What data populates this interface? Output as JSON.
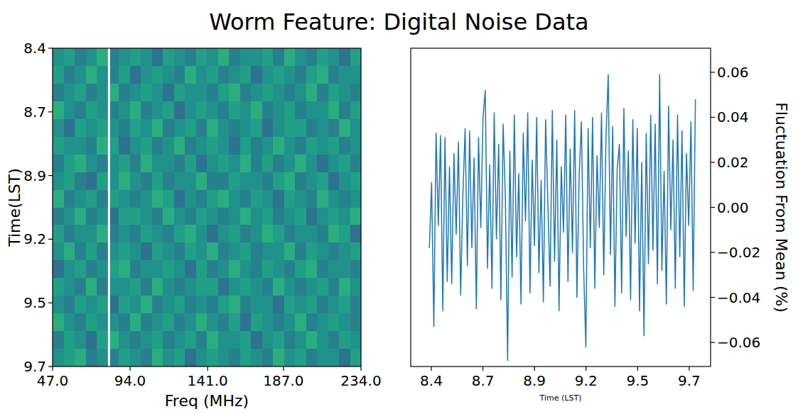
{
  "title": "Worm Feature: Digital Noise Data",
  "chart_data": [
    {
      "type": "heatmap",
      "x_label": "Freq (MHz)",
      "y_label": "Time(LST)",
      "xlim": [
        47,
        234
      ],
      "ylim": [
        8.4,
        9.715
      ],
      "xticks": [
        {
          "value": 47,
          "label": "47.0"
        },
        {
          "value": 94,
          "label": "94.0"
        },
        {
          "value": 141,
          "label": "141.0"
        },
        {
          "value": 187,
          "label": "187.0"
        },
        {
          "value": 234,
          "label": "234.0"
        }
      ],
      "yticks": [
        8.4,
        {
          "value": 8.663,
          "label": "8.7"
        },
        {
          "value": 8.926,
          "label": "8.9"
        },
        {
          "value": 9.189,
          "label": "9.2"
        },
        {
          "value": 9.452,
          "label": "9.5"
        },
        {
          "value": 9.715,
          "label": "9.7"
        }
      ],
      "color_range": [
        -8,
        8
      ],
      "flagged_freq": [
        81.2
      ],
      "cells": [
        [
          0,
          1,
          -1,
          0,
          2,
          -1,
          0,
          1,
          0,
          -2,
          1,
          0,
          -1,
          1,
          0,
          2,
          -1,
          0,
          0,
          1,
          -1,
          2,
          0,
          -1,
          1,
          0,
          -2,
          1
        ],
        [
          1,
          -1,
          0,
          2,
          0,
          -1,
          1,
          -2,
          0,
          1,
          0,
          -1,
          2,
          0,
          1,
          -1,
          0,
          1,
          -2,
          0,
          1,
          0,
          -1,
          1,
          2,
          -1,
          0,
          0
        ],
        [
          -1,
          0,
          1,
          -1,
          0,
          2,
          -1,
          0,
          1,
          0,
          -2,
          1,
          0,
          0,
          -1,
          1,
          2,
          -1,
          0,
          1,
          0,
          -1,
          0,
          2,
          -1,
          1,
          0,
          -1
        ],
        [
          2,
          0,
          -1,
          1,
          0,
          -1,
          0,
          2,
          -1,
          0,
          1,
          -2,
          0,
          1,
          0,
          -1,
          1,
          0,
          2,
          -1,
          0,
          1,
          -1,
          0,
          0,
          2,
          -1,
          1
        ],
        [
          0,
          -2,
          1,
          0,
          1,
          0,
          -1,
          1,
          0,
          2,
          -1,
          0,
          1,
          -1,
          2,
          0,
          -1,
          0,
          1,
          -2,
          0,
          1,
          1,
          -1,
          0,
          -1,
          2,
          0
        ],
        [
          1,
          0,
          0,
          -1,
          2,
          1,
          -2,
          0,
          1,
          -1,
          0,
          2,
          -1,
          0,
          1,
          0,
          -2,
          1,
          -1,
          0,
          2,
          0,
          -1,
          1,
          0,
          1,
          -1,
          0
        ],
        [
          -1,
          1,
          2,
          0,
          -1,
          0,
          1,
          -1,
          2,
          0,
          0,
          -1,
          1,
          -2,
          0,
          1,
          0,
          2,
          -1,
          1,
          -1,
          0,
          2,
          0,
          -2,
          0,
          1,
          -1
        ],
        [
          0,
          1,
          -1,
          -2,
          1,
          0,
          2,
          0,
          -1,
          1,
          -1,
          0,
          0,
          2,
          -1,
          -1,
          1,
          0,
          0,
          -1,
          1,
          2,
          -1,
          0,
          1,
          -2,
          0,
          1
        ],
        [
          2,
          -1,
          0,
          1,
          -1,
          1,
          0,
          -1,
          0,
          2,
          1,
          -2,
          0,
          -1,
          1,
          2,
          0,
          -1,
          1,
          0,
          -2,
          1,
          0,
          -1,
          2,
          0,
          -1,
          0
        ],
        [
          -1,
          0,
          2,
          -1,
          0,
          -2,
          1,
          1,
          0,
          -1,
          2,
          0,
          -1,
          1,
          0,
          -1,
          0,
          2,
          0,
          1,
          -1,
          0,
          1,
          -2,
          0,
          1,
          0,
          2
        ],
        [
          1,
          -1,
          0,
          0,
          2,
          -1,
          0,
          -1,
          1,
          0,
          -1,
          1,
          2,
          0,
          -2,
          0,
          1,
          -1,
          0,
          2,
          1,
          -1,
          0,
          0,
          -1,
          2,
          1,
          -2
        ],
        [
          0,
          2,
          -1,
          1,
          -1,
          0,
          1,
          0,
          -2,
          1,
          0,
          -1,
          1,
          0,
          2,
          -1,
          0,
          1,
          -1,
          0,
          0,
          2,
          -1,
          1,
          0,
          -1,
          0,
          1
        ],
        [
          -2,
          0,
          1,
          -1,
          0,
          1,
          2,
          -1,
          0,
          0,
          1,
          0,
          -2,
          1,
          -1,
          0,
          2,
          0,
          -1,
          1,
          0,
          -1,
          1,
          2,
          -1,
          0,
          0,
          -1
        ],
        [
          1,
          0,
          -1,
          2,
          -1,
          0,
          0,
          1,
          -1,
          2,
          0,
          -1,
          0,
          1,
          1,
          -2,
          0,
          1,
          0,
          -1,
          2,
          0,
          -1,
          0,
          1,
          -1,
          2,
          0
        ],
        [
          0,
          -1,
          1,
          0,
          1,
          -2,
          1,
          0,
          2,
          -1,
          0,
          1,
          -1,
          0,
          -1,
          1,
          2,
          -1,
          0,
          0,
          -2,
          1,
          0,
          1,
          -1,
          0,
          1,
          -1
        ],
        [
          2,
          0,
          -1,
          1,
          0,
          0,
          -1,
          2,
          -1,
          0,
          1,
          -1,
          0,
          2,
          0,
          -1,
          1,
          -2,
          1,
          0,
          -1,
          0,
          2,
          -1,
          0,
          1,
          0,
          -1
        ],
        [
          -1,
          1,
          0,
          -2,
          1,
          2,
          0,
          -1,
          0,
          1,
          -1,
          0,
          1,
          -1,
          2,
          0,
          0,
          1,
          -2,
          0,
          1,
          -1,
          0,
          2,
          0,
          -1,
          1,
          0
        ],
        [
          0,
          1,
          2,
          -1,
          0,
          -1,
          1,
          0,
          -1,
          2,
          0,
          1,
          -2,
          0,
          1,
          0,
          -1,
          1,
          0,
          -1,
          2,
          0,
          1,
          -1,
          0,
          0,
          -2,
          1
        ]
      ]
    },
    {
      "type": "line",
      "x_label": "Time (LST)",
      "y_label": "Fluctuation From Mean (%)",
      "xlim": [
        8.295,
        9.824
      ],
      "ylim": [
        -0.0707,
        0.0707
      ],
      "xticks": [
        8.4,
        {
          "value": 8.663,
          "label": "8.7"
        },
        {
          "value": 8.926,
          "label": "8.9"
        },
        {
          "value": 9.189,
          "label": "9.2"
        },
        {
          "value": 9.452,
          "label": "9.5"
        },
        {
          "value": 9.715,
          "label": "9.7"
        }
      ],
      "yticks": [
        {
          "value": -0.06,
          "label": "−0.06"
        },
        {
          "value": -0.04,
          "label": "−0.04"
        },
        {
          "value": -0.02,
          "label": "−0.02"
        },
        {
          "value": 0,
          "label": "0.00"
        },
        0.02,
        0.04,
        0.06
      ],
      "x": [
        8.39,
        8.4014,
        8.4128,
        8.4242,
        8.4356,
        8.447,
        8.4584,
        8.4698,
        8.4812,
        8.4926,
        8.504,
        8.5154,
        8.5268,
        8.5382,
        8.5496,
        8.561,
        8.5724,
        8.5838,
        8.5952,
        8.6066,
        8.618,
        8.6294,
        8.6408,
        8.6522,
        8.6636,
        8.675,
        8.6864,
        8.6978,
        8.7092,
        8.7206,
        8.732,
        8.7434,
        8.7548,
        8.7662,
        8.7776,
        8.789,
        8.8004,
        8.8118,
        8.8232,
        8.8346,
        8.846,
        8.8574,
        8.8688,
        8.8802,
        8.8916,
        8.903,
        8.9144,
        8.9258,
        8.9372,
        8.9486,
        8.96,
        8.9714,
        8.9828,
        8.9942,
        9.0056,
        9.017,
        9.0284,
        9.0398,
        9.0512,
        9.0626,
        9.074,
        9.0854,
        9.0968,
        9.1082,
        9.1196,
        9.131,
        9.1424,
        9.1538,
        9.1652,
        9.1766,
        9.188,
        9.1994,
        9.2108,
        9.2222,
        9.2336,
        9.245,
        9.2564,
        9.2678,
        9.2792,
        9.2906,
        9.302,
        9.3134,
        9.3248,
        9.3362,
        9.3476,
        9.359,
        9.3704,
        9.3818,
        9.3932,
        9.4046,
        9.416,
        9.4274,
        9.4388,
        9.4502,
        9.4616,
        9.473,
        9.4844,
        9.4958,
        9.5072,
        9.5186,
        9.53,
        9.5414,
        9.5528,
        9.5642,
        9.5756,
        9.587,
        9.5984,
        9.6098,
        9.6212,
        9.6326,
        9.644,
        9.6554,
        9.6668,
        9.6782,
        9.6896,
        9.701,
        9.7124,
        9.7238,
        9.7352,
        9.7466
      ],
      "series": [
        {
          "color": "#1f77b4",
          "values": [
            -0.018,
            0.011,
            -0.053,
            0.033,
            -0.008,
            0.032,
            -0.046,
            0.031,
            -0.033,
            0.018,
            -0.034,
            0.024,
            -0.012,
            0.029,
            -0.039,
            0.006,
            0.035,
            -0.026,
            0.034,
            -0.018,
            0.022,
            -0.045,
            0.031,
            -0.009,
            0.04,
            0.052,
            -0.027,
            0.019,
            -0.036,
            0.042,
            -0.014,
            0.028,
            -0.041,
            0.037,
            0.004,
            -0.068,
            0.025,
            -0.031,
            0.041,
            -0.022,
            0.015,
            -0.043,
            0.033,
            -0.006,
            0.042,
            -0.038,
            0.021,
            -0.017,
            0.04,
            -0.029,
            0.012,
            -0.042,
            0.039,
            0.002,
            -0.035,
            0.043,
            -0.024,
            0.03,
            -0.046,
            0.018,
            -0.011,
            0.041,
            -0.033,
            0.026,
            -0.02,
            0.043,
            -0.04,
            0.014,
            0.038,
            -0.027,
            -0.062,
            0.035,
            -0.018,
            0.04,
            -0.036,
            0.023,
            -0.009,
            0.042,
            -0.03,
            0.031,
            0.059,
            -0.021,
            0.036,
            -0.044,
            0.017,
            0.028,
            -0.038,
            0.044,
            -0.013,
            0.025,
            -0.041,
            0.039,
            -0.016,
            0.035,
            -0.046,
            0.02,
            -0.057,
            0.033,
            -0.025,
            0.041,
            -0.019,
            0.037,
            -0.034,
            0.059,
            -0.028,
            0.016,
            -0.043,
            0.045,
            -0.01,
            0.03,
            -0.036,
            0.041,
            -0.022,
            0.034,
            -0.044,
            0.024,
            -0.008,
            0.038,
            -0.037,
            0.048
          ]
        }
      ]
    }
  ]
}
